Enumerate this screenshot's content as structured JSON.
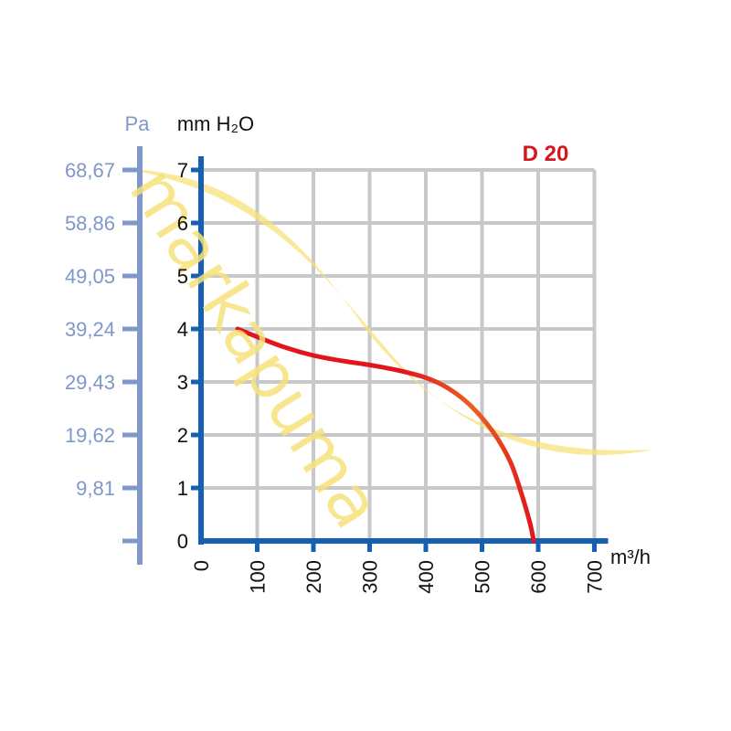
{
  "chart_data": {
    "type": "line",
    "title": "D 20",
    "xlabel": "m³/h",
    "ylabel": "mm H₂O",
    "ylabel_secondary": "Pa",
    "xlim": [
      0,
      700
    ],
    "ylim": [
      0,
      7
    ],
    "x_ticks": [
      "0",
      "100",
      "200",
      "300",
      "400",
      "500",
      "600",
      "700"
    ],
    "y_ticks": [
      "0",
      "1",
      "2",
      "3",
      "4",
      "5",
      "6",
      "7"
    ],
    "y_secondary_ticks": [
      "9,81",
      "19,62",
      "29,43",
      "39,24",
      "49,05",
      "58,86",
      "68,67"
    ],
    "grid": true,
    "series": [
      {
        "color": "#e2141c",
        "x": [
          65,
          100,
          150,
          200,
          250,
          300,
          350,
          400,
          440,
          480,
          520,
          550,
          570,
          585,
          592
        ],
        "y": [
          4.0,
          3.85,
          3.65,
          3.5,
          3.4,
          3.32,
          3.22,
          3.08,
          2.88,
          2.55,
          2.05,
          1.5,
          0.9,
          0.35,
          0.0
        ]
      }
    ],
    "colors": {
      "axis": "#1560b0",
      "secondary_axis": "#7f97c9",
      "grid": "#c8c8c8",
      "line_start": "#e2141c",
      "line_mid": "#e8641f",
      "title": "#d6161f"
    }
  },
  "watermark": {
    "text": "markapuma",
    "color": "#f6e27a"
  }
}
